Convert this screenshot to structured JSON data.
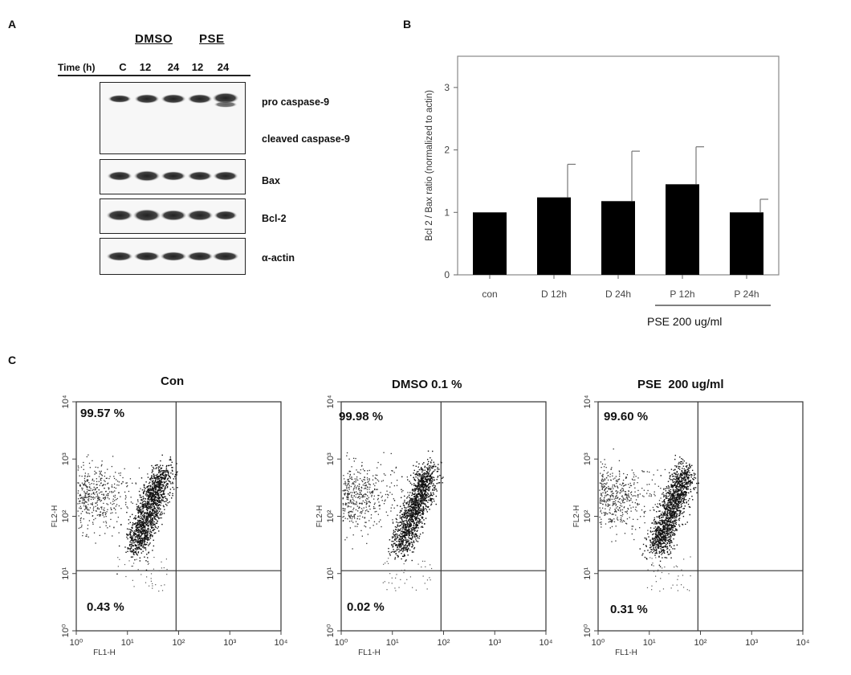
{
  "panel_a": {
    "letter": "A",
    "groups": [
      "DMSO",
      "PSE"
    ],
    "time_label": "Time (h)",
    "time_values": [
      "C",
      "12",
      "24",
      "12",
      "24"
    ],
    "bands": [
      {
        "label_top": "pro caspase-9",
        "label_bottom": "cleaved caspase-9"
      },
      {
        "label": "Bax"
      },
      {
        "label": "Bcl-2"
      },
      {
        "label": "α-actin"
      }
    ]
  },
  "panel_b": {
    "letter": "B",
    "treatment_label": "PSE 200 ug/ml"
  },
  "panel_c": {
    "letter": "C",
    "plots": [
      {
        "title": "Con",
        "upper_pct": "99.57 %",
        "lower_pct": "0.43 %"
      },
      {
        "title": "DMSO 0.1 %",
        "upper_pct": "99.98 %",
        "lower_pct": "0.02 %"
      },
      {
        "title": "PSE  200 ug/ml",
        "upper_pct": "99.60 %",
        "lower_pct": "0.31 %"
      }
    ],
    "xlabel": "FL1-H",
    "ylabel": "FL2-H",
    "ticks": [
      "10⁰",
      "10¹",
      "10²",
      "10³",
      "10⁴"
    ]
  },
  "chart_data": {
    "type": "bar",
    "categories": [
      "con",
      "D 12h",
      "D 24h",
      "P 12h",
      "P 24h"
    ],
    "values": [
      1.0,
      1.24,
      1.18,
      1.45,
      1.0
    ],
    "errors": [
      0,
      0.53,
      0.8,
      0.6,
      0.21
    ],
    "ylabel": "Bcl 2 / Bax ratio (normalized to actin)",
    "ylim": [
      0,
      3.5
    ],
    "yticks": [
      "0",
      "1",
      "2",
      "3"
    ],
    "bar_color": "#000000"
  }
}
